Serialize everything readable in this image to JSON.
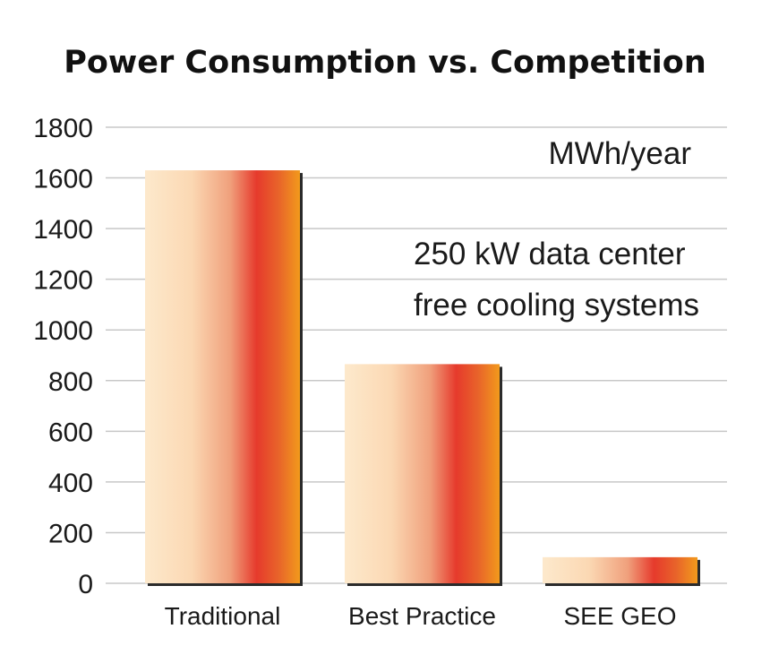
{
  "chart_data": {
    "type": "bar",
    "title": "Power Consumption vs. Competition",
    "categories": [
      "Traditional",
      "Best Practice",
      "SEE GEO"
    ],
    "values": [
      1630,
      865,
      103
    ],
    "ylim": [
      0,
      1800
    ],
    "yticks": [
      0,
      200,
      400,
      600,
      800,
      1000,
      1200,
      1400,
      1600,
      1800
    ],
    "unit_label": "MWh/year",
    "annotation_lines": [
      "250 kW data center",
      "free cooling systems"
    ],
    "grid": true,
    "colors": {
      "gradient": [
        "#fde9cc",
        "#f5b98c",
        "#e63a2c",
        "#e8732a",
        "#f29a1c"
      ],
      "grid": "#c8c8c8",
      "shadow": "#2b2b2b"
    }
  }
}
